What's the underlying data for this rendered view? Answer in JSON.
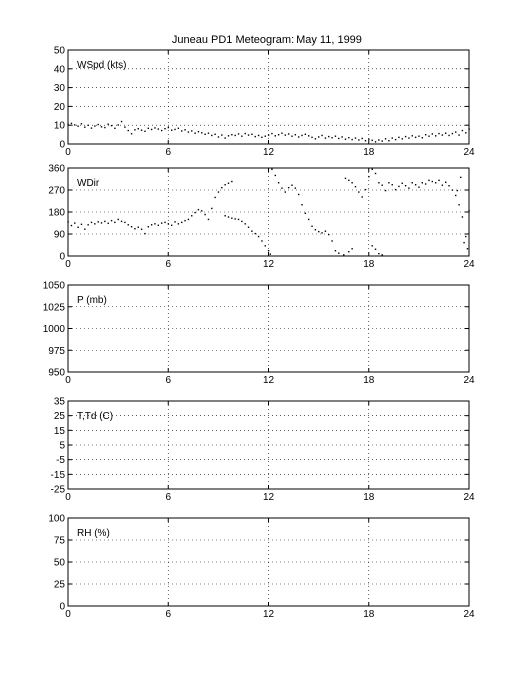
{
  "figure": {
    "title": "Juneau PD1 Meteogram:",
    "date": "May 11, 1999"
  },
  "chart_data": [
    {
      "type": "scatter",
      "label": "WSpd (kts)",
      "xlim": [
        0,
        24
      ],
      "xticks": [
        0,
        6,
        12,
        18,
        24
      ],
      "ylim": [
        0,
        50
      ],
      "yticks": [
        0,
        10,
        20,
        30,
        40,
        50
      ],
      "grid": true,
      "points": [
        [
          0.0,
          10.5
        ],
        [
          0.2,
          11.0
        ],
        [
          0.4,
          10.2
        ],
        [
          0.6,
          9.5
        ],
        [
          0.8,
          10.8
        ],
        [
          1.0,
          9.0
        ],
        [
          1.2,
          10.0
        ],
        [
          1.4,
          8.5
        ],
        [
          1.6,
          9.6
        ],
        [
          1.8,
          10.4
        ],
        [
          2.0,
          9.2
        ],
        [
          2.2,
          8.8
        ],
        [
          2.4,
          10.6
        ],
        [
          2.6,
          9.8
        ],
        [
          2.8,
          8.4
        ],
        [
          3.0,
          10.2
        ],
        [
          3.2,
          12.0
        ],
        [
          3.4,
          9.0
        ],
        [
          3.6,
          7.2
        ],
        [
          3.8,
          5.5
        ],
        [
          4.0,
          7.6
        ],
        [
          4.2,
          8.2
        ],
        [
          4.4,
          7.4
        ],
        [
          4.6,
          6.8
        ],
        [
          4.8,
          8.4
        ],
        [
          5.0,
          7.8
        ],
        [
          5.2,
          8.6
        ],
        [
          5.4,
          8.0
        ],
        [
          5.6,
          7.2
        ],
        [
          5.8,
          8.2
        ],
        [
          6.0,
          8.8
        ],
        [
          6.2,
          7.4
        ],
        [
          6.4,
          7.8
        ],
        [
          6.6,
          8.4
        ],
        [
          6.8,
          7.0
        ],
        [
          7.0,
          7.6
        ],
        [
          7.2,
          6.4
        ],
        [
          7.4,
          7.0
        ],
        [
          7.6,
          5.8
        ],
        [
          7.8,
          6.6
        ],
        [
          8.0,
          6.0
        ],
        [
          8.2,
          5.2
        ],
        [
          8.4,
          5.8
        ],
        [
          8.6,
          4.6
        ],
        [
          8.8,
          5.2
        ],
        [
          9.0,
          3.8
        ],
        [
          9.2,
          4.8
        ],
        [
          9.4,
          3.2
        ],
        [
          9.6,
          4.4
        ],
        [
          9.8,
          5.0
        ],
        [
          10.0,
          4.6
        ],
        [
          10.2,
          5.4
        ],
        [
          10.4,
          4.2
        ],
        [
          10.6,
          5.6
        ],
        [
          10.8,
          4.8
        ],
        [
          11.0,
          5.2
        ],
        [
          11.2,
          4.0
        ],
        [
          11.4,
          4.6
        ],
        [
          11.6,
          3.6
        ],
        [
          11.8,
          4.2
        ],
        [
          12.0,
          4.8
        ],
        [
          12.2,
          5.6
        ],
        [
          12.4,
          4.4
        ],
        [
          12.6,
          5.0
        ],
        [
          12.8,
          5.8
        ],
        [
          13.0,
          4.8
        ],
        [
          13.2,
          5.4
        ],
        [
          13.4,
          4.2
        ],
        [
          13.6,
          5.0
        ],
        [
          13.8,
          3.8
        ],
        [
          14.0,
          4.6
        ],
        [
          14.2,
          5.2
        ],
        [
          14.4,
          4.4
        ],
        [
          14.6,
          3.6
        ],
        [
          14.8,
          2.8
        ],
        [
          15.0,
          3.8
        ],
        [
          15.2,
          4.6
        ],
        [
          15.4,
          3.2
        ],
        [
          15.6,
          4.0
        ],
        [
          15.8,
          3.4
        ],
        [
          16.0,
          4.2
        ],
        [
          16.2,
          3.0
        ],
        [
          16.4,
          3.8
        ],
        [
          16.6,
          2.6
        ],
        [
          16.8,
          3.4
        ],
        [
          17.0,
          2.4
        ],
        [
          17.2,
          3.2
        ],
        [
          17.4,
          2.2
        ],
        [
          17.6,
          3.0
        ],
        [
          17.8,
          1.8
        ],
        [
          18.0,
          2.6
        ],
        [
          18.2,
          2.0
        ],
        [
          18.4,
          1.2
        ],
        [
          18.6,
          2.2
        ],
        [
          18.8,
          1.6
        ],
        [
          19.0,
          2.8
        ],
        [
          19.2,
          1.8
        ],
        [
          19.4,
          3.2
        ],
        [
          19.6,
          2.4
        ],
        [
          19.8,
          3.6
        ],
        [
          20.0,
          2.8
        ],
        [
          20.2,
          4.0
        ],
        [
          20.4,
          3.2
        ],
        [
          20.6,
          4.4
        ],
        [
          20.8,
          3.6
        ],
        [
          21.0,
          4.2
        ],
        [
          21.2,
          3.4
        ],
        [
          21.4,
          5.0
        ],
        [
          21.6,
          4.2
        ],
        [
          21.8,
          5.4
        ],
        [
          22.0,
          4.4
        ],
        [
          22.2,
          5.6
        ],
        [
          22.4,
          4.8
        ],
        [
          22.6,
          5.8
        ],
        [
          22.8,
          4.6
        ],
        [
          23.0,
          5.6
        ],
        [
          23.2,
          6.4
        ],
        [
          23.4,
          4.8
        ],
        [
          23.6,
          7.2
        ],
        [
          23.8,
          6.0
        ],
        [
          24.0,
          8.0
        ]
      ]
    },
    {
      "type": "scatter",
      "label": "WDir",
      "xlim": [
        0,
        24
      ],
      "xticks": [
        0,
        6,
        12,
        18,
        24
      ],
      "ylim": [
        0,
        360
      ],
      "yticks": [
        0,
        90,
        180,
        270,
        360
      ],
      "grid": true,
      "points": [
        [
          0.0,
          140
        ],
        [
          0.2,
          125
        ],
        [
          0.4,
          135
        ],
        [
          0.6,
          118
        ],
        [
          0.8,
          130
        ],
        [
          1.0,
          110
        ],
        [
          1.2,
          128
        ],
        [
          1.4,
          138
        ],
        [
          1.6,
          132
        ],
        [
          1.8,
          140
        ],
        [
          2.0,
          136
        ],
        [
          2.2,
          142
        ],
        [
          2.4,
          134
        ],
        [
          2.6,
          145
        ],
        [
          2.8,
          138
        ],
        [
          3.0,
          150
        ],
        [
          3.2,
          142
        ],
        [
          3.4,
          138
        ],
        [
          3.6,
          128
        ],
        [
          3.8,
          120
        ],
        [
          4.0,
          112
        ],
        [
          4.2,
          118
        ],
        [
          4.4,
          110
        ],
        [
          4.6,
          92
        ],
        [
          4.8,
          120
        ],
        [
          5.0,
          128
        ],
        [
          5.2,
          132
        ],
        [
          5.4,
          126
        ],
        [
          5.6,
          135
        ],
        [
          5.8,
          138
        ],
        [
          6.0,
          132
        ],
        [
          6.2,
          126
        ],
        [
          6.4,
          140
        ],
        [
          6.6,
          132
        ],
        [
          6.8,
          138
        ],
        [
          7.0,
          145
        ],
        [
          7.2,
          150
        ],
        [
          7.4,
          165
        ],
        [
          7.6,
          178
        ],
        [
          7.8,
          190
        ],
        [
          8.0,
          185
        ],
        [
          8.2,
          170
        ],
        [
          8.4,
          150
        ],
        [
          8.6,
          195
        ],
        [
          8.8,
          240
        ],
        [
          9.0,
          262
        ],
        [
          9.2,
          280
        ],
        [
          9.4,
          292
        ],
        [
          9.6,
          298
        ],
        [
          9.8,
          305
        ],
        [
          9.4,
          165
        ],
        [
          9.6,
          160
        ],
        [
          9.8,
          155
        ],
        [
          10.0,
          152
        ],
        [
          10.2,
          150
        ],
        [
          10.4,
          142
        ],
        [
          10.6,
          132
        ],
        [
          10.8,
          118
        ],
        [
          11.0,
          102
        ],
        [
          11.2,
          92
        ],
        [
          11.4,
          80
        ],
        [
          11.6,
          62
        ],
        [
          11.8,
          42
        ],
        [
          12.0,
          22
        ],
        [
          12.1,
          8
        ],
        [
          12.2,
          355
        ],
        [
          12.4,
          330
        ],
        [
          12.6,
          300
        ],
        [
          12.8,
          278
        ],
        [
          13.0,
          262
        ],
        [
          13.2,
          280
        ],
        [
          13.4,
          290
        ],
        [
          13.6,
          278
        ],
        [
          13.8,
          252
        ],
        [
          14.0,
          210
        ],
        [
          14.2,
          175
        ],
        [
          14.4,
          150
        ],
        [
          14.6,
          122
        ],
        [
          14.8,
          108
        ],
        [
          15.0,
          100
        ],
        [
          15.2,
          95
        ],
        [
          15.4,
          102
        ],
        [
          15.6,
          88
        ],
        [
          15.8,
          62
        ],
        [
          16.0,
          22
        ],
        [
          16.2,
          12
        ],
        [
          16.5,
          5
        ],
        [
          16.8,
          18
        ],
        [
          17.0,
          30
        ],
        [
          16.6,
          318
        ],
        [
          16.8,
          310
        ],
        [
          17.0,
          300
        ],
        [
          17.2,
          284
        ],
        [
          17.4,
          262
        ],
        [
          17.6,
          242
        ],
        [
          17.8,
          272
        ],
        [
          18.0,
          325
        ],
        [
          18.2,
          355
        ],
        [
          18.4,
          338
        ],
        [
          18.6,
          300
        ],
        [
          18.8,
          290
        ],
        [
          18.2,
          42
        ],
        [
          18.4,
          28
        ],
        [
          18.6,
          10
        ],
        [
          18.8,
          5
        ],
        [
          19.0,
          268
        ],
        [
          19.2,
          300
        ],
        [
          19.4,
          292
        ],
        [
          19.6,
          272
        ],
        [
          19.8,
          285
        ],
        [
          20.0,
          298
        ],
        [
          20.2,
          288
        ],
        [
          20.4,
          278
        ],
        [
          20.6,
          300
        ],
        [
          20.8,
          292
        ],
        [
          21.0,
          282
        ],
        [
          21.2,
          300
        ],
        [
          21.4,
          295
        ],
        [
          21.6,
          310
        ],
        [
          21.8,
          305
        ],
        [
          22.0,
          300
        ],
        [
          22.2,
          310
        ],
        [
          22.4,
          290
        ],
        [
          22.6,
          302
        ],
        [
          22.8,
          288
        ],
        [
          23.0,
          270
        ],
        [
          23.2,
          248
        ],
        [
          23.4,
          210
        ],
        [
          23.6,
          160
        ],
        [
          23.8,
          80
        ],
        [
          24.0,
          185
        ],
        [
          23.9,
          30
        ],
        [
          23.7,
          55
        ],
        [
          23.5,
          322
        ],
        [
          23.3,
          268
        ]
      ]
    },
    {
      "type": "scatter",
      "label": "P (mb)",
      "xlim": [
        0,
        24
      ],
      "xticks": [
        0,
        6,
        12,
        18,
        24
      ],
      "ylim": [
        950,
        1050
      ],
      "yticks": [
        950,
        975,
        1000,
        1025,
        1050
      ],
      "grid": true,
      "points": []
    },
    {
      "type": "scatter",
      "label": "T,Td (C)",
      "xlim": [
        0,
        24
      ],
      "xticks": [
        0,
        6,
        12,
        18,
        24
      ],
      "ylim": [
        -25,
        35
      ],
      "yticks": [
        -25,
        -15,
        -5,
        5,
        15,
        25,
        35
      ],
      "ytick_labels": [
        "-25",
        "-15",
        "-5",
        "5",
        "15",
        "25",
        "35"
      ],
      "ytick_values": [
        -25,
        -15,
        -5,
        5,
        15,
        25,
        35
      ],
      "grid": true,
      "points": []
    },
    {
      "type": "scatter",
      "label": "RH (%)",
      "xlim": [
        0,
        24
      ],
      "xticks": [
        0,
        6,
        12,
        18,
        24
      ],
      "ylim": [
        0,
        100
      ],
      "yticks": [
        0,
        25,
        50,
        75,
        100
      ],
      "grid": true,
      "points": []
    }
  ]
}
